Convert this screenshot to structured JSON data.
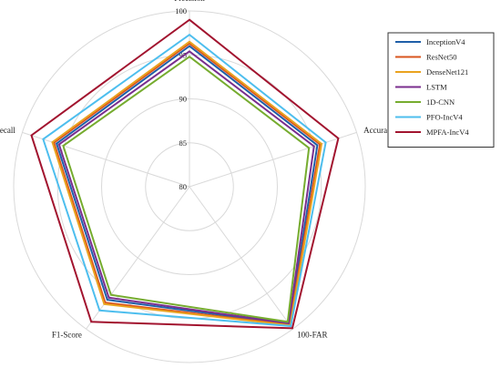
{
  "chart_data": {
    "type": "radar",
    "axes": [
      "Precision",
      "Accuracy",
      "100-FAR",
      "F1-Score",
      "Recall"
    ],
    "radial_ticks": [
      "80",
      "85",
      "90",
      "95",
      "100"
    ],
    "rlim": [
      80,
      100
    ],
    "grid": true,
    "legend_position": "top-right",
    "series": [
      {
        "name": "InceptionV4",
        "color": "#1f5fa8",
        "values": [
          96.0,
          95.3,
          99.3,
          95.9,
          95.9
        ]
      },
      {
        "name": "ResNet50",
        "color": "#d9541e",
        "values": [
          96.3,
          95.6,
          99.4,
          96.3,
          96.2
        ]
      },
      {
        "name": "DenseNet121",
        "color": "#eaa31f",
        "values": [
          96.5,
          95.8,
          99.5,
          96.5,
          96.4
        ]
      },
      {
        "name": "LSTM",
        "color": "#7a2e8e",
        "values": [
          95.4,
          94.9,
          99.2,
          95.6,
          95.6
        ]
      },
      {
        "name": "1D-CNN",
        "color": "#76ac2f",
        "values": [
          94.8,
          94.3,
          99.0,
          95.2,
          95.1
        ]
      },
      {
        "name": "PFO-IncV4",
        "color": "#4dbeee",
        "values": [
          97.3,
          96.3,
          99.6,
          97.4,
          97.5
        ]
      },
      {
        "name": "MPFA-IncV4",
        "color": "#a2142f",
        "values": [
          99.0,
          97.8,
          99.9,
          99.0,
          98.9
        ]
      }
    ]
  }
}
